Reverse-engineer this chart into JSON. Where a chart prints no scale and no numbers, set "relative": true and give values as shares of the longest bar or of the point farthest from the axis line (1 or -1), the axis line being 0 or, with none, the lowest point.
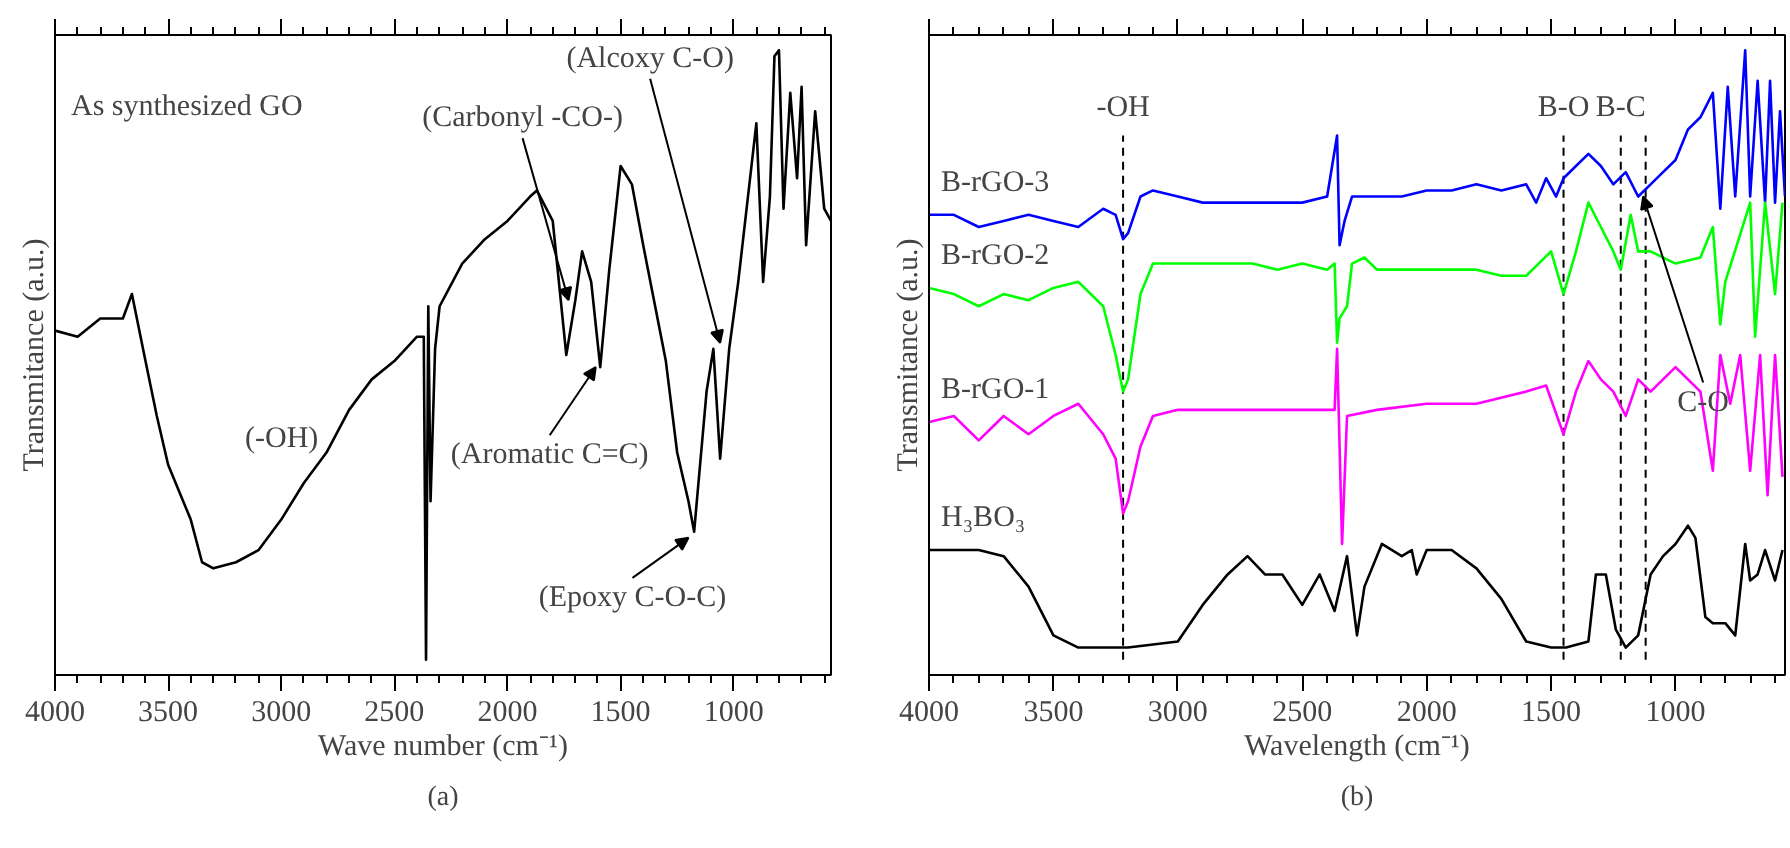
{
  "chart_data": [
    {
      "type": "line",
      "title": "(a)",
      "xlabel": "Wave number (cm⁻¹)",
      "ylabel": "Transmitance (a.u.)",
      "relative": true,
      "tick_labels": "x",
      "grid": false,
      "line_style": "solid",
      "xlim": [
        4000,
        570
      ],
      "xticks": [
        4000,
        3500,
        3000,
        2500,
        2000,
        1500,
        1000,
        {
          "value": 3900,
          "label": null
        },
        {
          "value": 3800,
          "label": null
        },
        {
          "value": 3700,
          "label": null
        },
        {
          "value": 3600,
          "label": null
        },
        {
          "value": 3400,
          "label": null
        },
        {
          "value": 3300,
          "label": null
        },
        {
          "value": 3200,
          "label": null
        },
        {
          "value": 3100,
          "label": null
        },
        {
          "value": 2900,
          "label": null
        },
        {
          "value": 2800,
          "label": null
        },
        {
          "value": 2700,
          "label": null
        },
        {
          "value": 2600,
          "label": null
        },
        {
          "value": 2400,
          "label": null
        },
        {
          "value": 2300,
          "label": null
        },
        {
          "value": 2200,
          "label": null
        },
        {
          "value": 2100,
          "label": null
        },
        {
          "value": 1900,
          "label": null
        },
        {
          "value": 1800,
          "label": null
        },
        {
          "value": 1700,
          "label": null
        },
        {
          "value": 1600,
          "label": null
        },
        {
          "value": 1400,
          "label": null
        },
        {
          "value": 1300,
          "label": null
        },
        {
          "value": 1200,
          "label": null
        },
        {
          "value": 1100,
          "label": null
        },
        {
          "value": 900,
          "label": null
        },
        {
          "value": 800,
          "label": null
        },
        {
          "value": 700,
          "label": null
        },
        {
          "value": 600,
          "label": null
        }
      ],
      "series": [
        {
          "color": "#000000",
          "x": [
            4000,
            3900,
            3800,
            3700,
            3660,
            3600,
            3550,
            3500,
            3400,
            3350,
            3300,
            3200,
            3100,
            3000,
            2900,
            2800,
            2700,
            2600,
            2500,
            2400,
            2370,
            2360,
            2350,
            2340,
            2320,
            2300,
            2200,
            2100,
            2000,
            1900,
            1870,
            1800,
            1740,
            1700,
            1670,
            1630,
            1590,
            1550,
            1500,
            1450,
            1400,
            1300,
            1250,
            1200,
            1175,
            1120,
            1090,
            1060,
            1020,
            980,
            900,
            870,
            840,
            820,
            800,
            780,
            750,
            720,
            700,
            680,
            640,
            600,
            570
          ],
          "values": [
            0.54,
            0.53,
            0.56,
            0.56,
            0.6,
            0.49,
            0.4,
            0.32,
            0.23,
            0.16,
            0.15,
            0.16,
            0.18,
            0.23,
            0.29,
            0.34,
            0.41,
            0.46,
            0.49,
            0.53,
            0.53,
            0,
            0.58,
            0.26,
            0.51,
            0.58,
            0.65,
            0.69,
            0.72,
            0.76,
            0.77,
            0.72,
            0.5,
            0.59,
            0.67,
            0.62,
            0.48,
            0.64,
            0.81,
            0.78,
            0.68,
            0.49,
            0.34,
            0.26,
            0.21,
            0.44,
            0.51,
            0.33,
            0.51,
            0.62,
            0.88,
            0.62,
            0.76,
            0.99,
            1,
            0.74,
            0.93,
            0.79,
            0.94,
            0.68,
            0.9,
            0.74,
            0.72
          ]
        }
      ],
      "annotations": [
        "As synthesized GO",
        "(-OH)",
        {
          "text": "(Carbonyl -CO-)",
          "x": 1730,
          "y": 0.59
        },
        {
          "text": "(Alcoxy C-O)",
          "x": 1060,
          "y": 0.52
        },
        {
          "text": "(Aromatic C=C)",
          "x": 1610,
          "y": 0.48
        },
        {
          "text": "(Epoxy C-O-C)",
          "x": 1200,
          "y": 0.2
        }
      ]
    },
    {
      "type": "line",
      "title": "(b)",
      "xlabel": "Wavelength (cm⁻¹)",
      "ylabel": "Transmitance (a.u.)",
      "relative": true,
      "tick_labels": "x",
      "grid": false,
      "line_style": "solid",
      "xlim": [
        4000,
        560
      ],
      "xticks": [
        4000,
        3500,
        3000,
        2500,
        2000,
        1500,
        1000,
        {
          "value": 3900,
          "label": null
        },
        {
          "value": 3800,
          "label": null
        },
        {
          "value": 3700,
          "label": null
        },
        {
          "value": 3600,
          "label": null
        },
        {
          "value": 3400,
          "label": null
        },
        {
          "value": 3300,
          "label": null
        },
        {
          "value": 3200,
          "label": null
        },
        {
          "value": 3100,
          "label": null
        },
        {
          "value": 2900,
          "label": null
        },
        {
          "value": 2800,
          "label": null
        },
        {
          "value": 2700,
          "label": null
        },
        {
          "value": 2600,
          "label": null
        },
        {
          "value": 2400,
          "label": null
        },
        {
          "value": 2300,
          "label": null
        },
        {
          "value": 2200,
          "label": null
        },
        {
          "value": 2100,
          "label": null
        },
        {
          "value": 1900,
          "label": null
        },
        {
          "value": 1800,
          "label": null
        },
        {
          "value": 1700,
          "label": null
        },
        {
          "value": 1600,
          "label": null
        },
        {
          "value": 1400,
          "label": null
        },
        {
          "value": 1300,
          "label": null
        },
        {
          "value": 1200,
          "label": null
        },
        {
          "value": 1100,
          "label": null
        },
        {
          "value": 900,
          "label": null
        },
        {
          "value": 800,
          "label": null
        },
        {
          "value": 700,
          "label": null
        },
        {
          "value": 600,
          "label": null
        }
      ],
      "series": [
        {
          "name": "B-rGO-3",
          "color": "#0000ff",
          "x": [
            4000,
            3900,
            3800,
            3700,
            3600,
            3500,
            3400,
            3300,
            3250,
            3220,
            3200,
            3150,
            3100,
            3000,
            2900,
            2800,
            2700,
            2600,
            2500,
            2400,
            2360,
            2350,
            2330,
            2300,
            2200,
            2100,
            2000,
            1900,
            1800,
            1700,
            1600,
            1560,
            1520,
            1480,
            1450,
            1400,
            1350,
            1300,
            1250,
            1200,
            1150,
            1100,
            1050,
            1000,
            950,
            900,
            850,
            820,
            790,
            760,
            720,
            700,
            670,
            640,
            620,
            600,
            580,
            560
          ],
          "values": [
            0.73,
            0.73,
            0.71,
            0.72,
            0.73,
            0.72,
            0.71,
            0.74,
            0.73,
            0.69,
            0.7,
            0.76,
            0.77,
            0.76,
            0.75,
            0.75,
            0.75,
            0.75,
            0.75,
            0.76,
            0.86,
            0.68,
            0.72,
            0.76,
            0.76,
            0.76,
            0.77,
            0.77,
            0.78,
            0.77,
            0.78,
            0.75,
            0.79,
            0.76,
            0.79,
            0.81,
            0.83,
            0.81,
            0.78,
            0.8,
            0.76,
            0.78,
            0.8,
            0.82,
            0.87,
            0.89,
            0.93,
            0.74,
            0.94,
            0.76,
            1,
            0.76,
            0.95,
            0.75,
            0.95,
            0.75,
            0.9,
            0.76
          ]
        },
        {
          "name": "B-rGO-2",
          "color": "#00ff00",
          "x": [
            4000,
            3900,
            3800,
            3700,
            3600,
            3500,
            3400,
            3300,
            3250,
            3220,
            3200,
            3150,
            3100,
            3000,
            2900,
            2800,
            2700,
            2600,
            2500,
            2400,
            2370,
            2360,
            2350,
            2320,
            2300,
            2250,
            2200,
            2000,
            1800,
            1700,
            1600,
            1550,
            1500,
            1450,
            1400,
            1350,
            1300,
            1250,
            1220,
            1180,
            1150,
            1100,
            1000,
            900,
            850,
            820,
            800,
            700,
            680,
            640,
            600,
            570
          ],
          "values": [
            0.61,
            0.6,
            0.58,
            0.6,
            0.59,
            0.61,
            0.62,
            0.58,
            0.5,
            0.44,
            0.46,
            0.6,
            0.65,
            0.65,
            0.65,
            0.65,
            0.65,
            0.64,
            0.65,
            0.64,
            0.65,
            0.52,
            0.56,
            0.58,
            0.65,
            0.66,
            0.64,
            0.64,
            0.64,
            0.63,
            0.63,
            0.65,
            0.67,
            0.6,
            0.67,
            0.75,
            0.71,
            0.67,
            0.64,
            0.73,
            0.67,
            0.67,
            0.65,
            0.66,
            0.71,
            0.55,
            0.62,
            0.75,
            0.53,
            0.75,
            0.6,
            0.75
          ]
        },
        {
          "name": "B-rGO-1",
          "color": "#ff00ff",
          "x": [
            4000,
            3900,
            3800,
            3700,
            3600,
            3500,
            3400,
            3300,
            3250,
            3220,
            3200,
            3150,
            3100,
            3000,
            2800,
            2600,
            2400,
            2370,
            2360,
            2340,
            2320,
            2200,
            2000,
            1800,
            1600,
            1520,
            1450,
            1400,
            1350,
            1300,
            1250,
            1200,
            1150,
            1100,
            1000,
            900,
            850,
            820,
            780,
            740,
            700,
            660,
            630,
            600,
            570
          ],
          "values": [
            0.39,
            0.4,
            0.36,
            0.4,
            0.37,
            0.4,
            0.42,
            0.37,
            0.33,
            0.24,
            0.26,
            0.35,
            0.4,
            0.41,
            0.41,
            0.41,
            0.41,
            0.41,
            0.51,
            0.19,
            0.4,
            0.41,
            0.42,
            0.42,
            0.44,
            0.45,
            0.37,
            0.44,
            0.49,
            0.46,
            0.44,
            0.4,
            0.46,
            0.44,
            0.48,
            0.44,
            0.31,
            0.5,
            0.42,
            0.5,
            0.31,
            0.5,
            0.27,
            0.5,
            0.3
          ]
        },
        {
          "name": "H₃BO₃",
          "color": "#000000",
          "x": [
            4000,
            3800,
            3700,
            3600,
            3500,
            3400,
            3200,
            3000,
            2900,
            2800,
            2720,
            2650,
            2580,
            2500,
            2430,
            2370,
            2320,
            2280,
            2250,
            2180,
            2100,
            2060,
            2040,
            2000,
            1900,
            1800,
            1700,
            1600,
            1500,
            1440,
            1350,
            1320,
            1280,
            1240,
            1200,
            1150,
            1100,
            1050,
            1000,
            950,
            920,
            880,
            850,
            800,
            760,
            720,
            700,
            670,
            640,
            600,
            570
          ],
          "values": [
            0.18,
            0.18,
            0.17,
            0.12,
            0.04,
            0.02,
            0.02,
            0.03,
            0.09,
            0.14,
            0.17,
            0.14,
            0.14,
            0.09,
            0.14,
            0.08,
            0.17,
            0.04,
            0.12,
            0.19,
            0.17,
            0.18,
            0.14,
            0.18,
            0.18,
            0.15,
            0.1,
            0.03,
            0.02,
            0.02,
            0.03,
            0.14,
            0.14,
            0.05,
            0.02,
            0.04,
            0.14,
            0.17,
            0.19,
            0.22,
            0.2,
            0.07,
            0.06,
            0.06,
            0.04,
            0.19,
            0.13,
            0.14,
            0.18,
            0.13,
            0.18
          ]
        }
      ],
      "ref_lines": [
        {
          "axis": "x",
          "value": 3220,
          "label": "-OH",
          "line_style": "dashed",
          "color": "#000000"
        },
        {
          "axis": "x",
          "value": 1450,
          "label": "B-O",
          "line_style": "dashed",
          "color": "#000000"
        },
        {
          "axis": "x",
          "value": 1220,
          "label": "B-C",
          "line_style": "dashed",
          "color": "#000000"
        },
        {
          "axis": "x",
          "value": 1120,
          "label": null,
          "line_style": "dashed",
          "color": "#000000"
        }
      ],
      "annotations": [
        {
          "text": "C-O",
          "x": 1130,
          "y": 0.76
        }
      ]
    }
  ]
}
